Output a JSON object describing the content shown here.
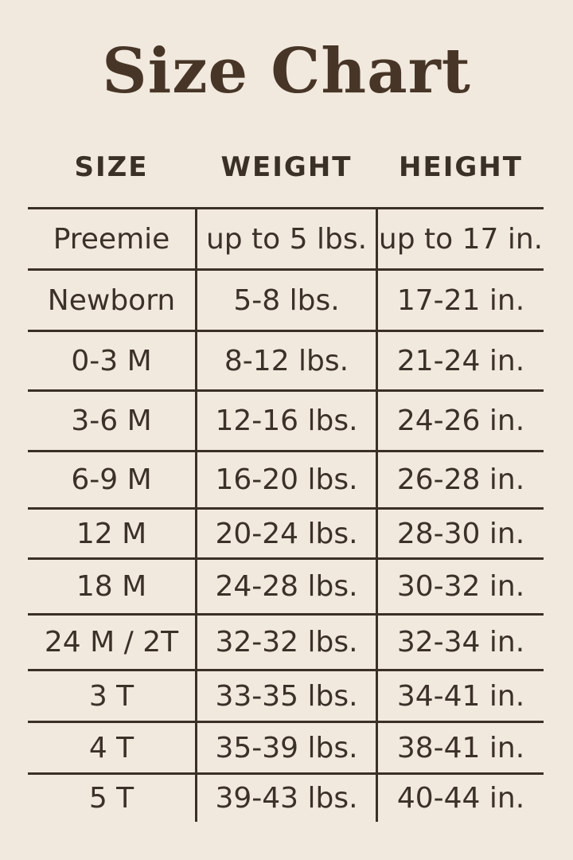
{
  "colors": {
    "background": "#f2e9de",
    "text": "#3b3129",
    "lines": "#3b3026",
    "title": "#473627"
  },
  "title": "Size Chart",
  "table": {
    "headers": [
      "SIZE",
      "WEIGHT",
      "HEIGHT"
    ],
    "rows": [
      {
        "size": "Preemie",
        "weight": "up to 5 lbs.",
        "height": "up to 17 in."
      },
      {
        "size": "Newborn",
        "weight": "5-8 lbs.",
        "height": "17-21 in."
      },
      {
        "size": "0-3 M",
        "weight": "8-12 lbs.",
        "height": "21-24 in."
      },
      {
        "size": "3-6 M",
        "weight": "12-16 lbs.",
        "height": "24-26 in."
      },
      {
        "size": "6-9 M",
        "weight": "16-20 lbs.",
        "height": "26-28 in."
      },
      {
        "size": "12 M",
        "weight": "20-24 lbs.",
        "height": "28-30 in."
      },
      {
        "size": "18 M",
        "weight": "24-28 lbs.",
        "height": "30-32 in."
      },
      {
        "size": "24 M / 2T",
        "weight": "32-32 lbs.",
        "height": "32-34 in."
      },
      {
        "size": "3 T",
        "weight": "33-35 lbs.",
        "height": "34-41 in."
      },
      {
        "size": "4 T",
        "weight": "35-39 lbs.",
        "height": "38-41 in."
      },
      {
        "size": "5 T",
        "weight": "39-43 lbs.",
        "height": "40-44 in."
      }
    ]
  },
  "chart_data": {
    "type": "table",
    "title": "Size Chart",
    "columns": [
      "SIZE",
      "WEIGHT",
      "HEIGHT"
    ],
    "rows": [
      [
        "Preemie",
        "up to 5 lbs.",
        "up to 17 in."
      ],
      [
        "Newborn",
        "5-8 lbs.",
        "17-21 in."
      ],
      [
        "0-3 M",
        "8-12 lbs.",
        "21-24 in."
      ],
      [
        "3-6 M",
        "12-16 lbs.",
        "24-26 in."
      ],
      [
        "6-9 M",
        "16-20 lbs.",
        "26-28 in."
      ],
      [
        "12 M",
        "20-24 lbs.",
        "28-30 in."
      ],
      [
        "18 M",
        "24-28 lbs.",
        "30-32 in."
      ],
      [
        "24 M / 2T",
        "32-32 lbs.",
        "32-34 in."
      ],
      [
        "3 T",
        "33-35 lbs.",
        "34-41 in."
      ],
      [
        "4 T",
        "35-39 lbs.",
        "38-41 in."
      ],
      [
        "5 T",
        "39-43 lbs.",
        "40-44 in."
      ]
    ],
    "layout": {
      "grid": "horizontal rules between all rows, vertical rules between columns only in body, no outer border",
      "legend": "none"
    }
  }
}
